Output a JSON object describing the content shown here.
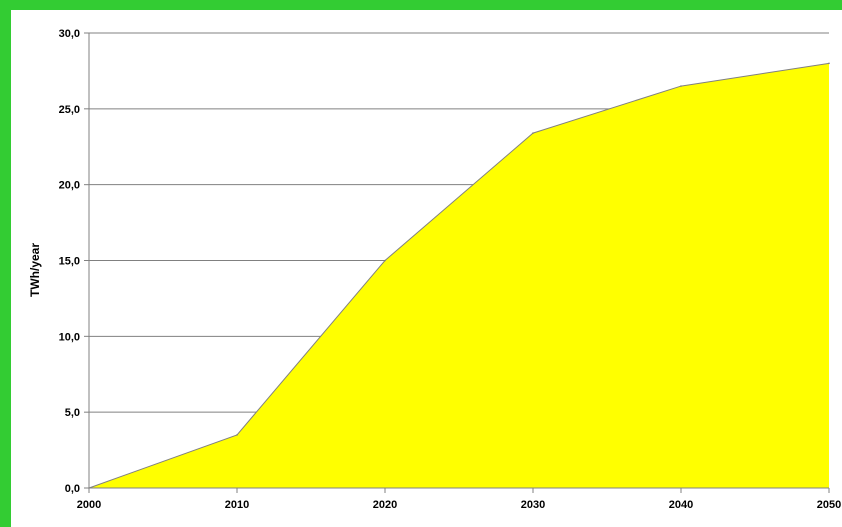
{
  "chart_data": {
    "type": "area",
    "title": "",
    "xlabel": "",
    "ylabel": "TWh/year",
    "x": [
      2000,
      2010,
      2020,
      2030,
      2040,
      2050
    ],
    "values": [
      0.0,
      3.5,
      15.0,
      23.4,
      26.5,
      28.0
    ],
    "x_ticks": [
      "2000",
      "2010",
      "2020",
      "2030",
      "2040",
      "2050"
    ],
    "y_ticks": [
      "0,0",
      "5,0",
      "10,0",
      "15,0",
      "20,0",
      "25,0",
      "30,0"
    ],
    "xlim": [
      2000,
      2050
    ],
    "ylim": [
      0,
      30
    ],
    "grid": "horizontal",
    "legend": "none",
    "colors": {
      "fill": "#ffff00",
      "line": "#808080",
      "grid": "#808080",
      "frame": "#33cc33",
      "background": "#ffffff"
    }
  }
}
